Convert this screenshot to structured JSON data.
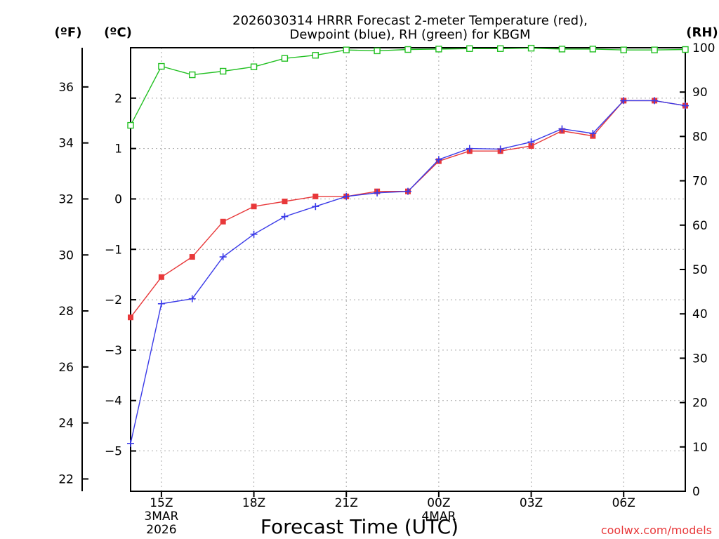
{
  "chart_data": {
    "type": "line",
    "title_line1": "2026030314 HRRR Forecast 2-meter Temperature (red),",
    "title_line2": "Dewpoint (blue), RH (green) for KBGM",
    "xlabel": "Forecast Time (UTC)",
    "credit": "coolwx.com/models",
    "units": {
      "fahrenheit": "(ºF)",
      "celsius": "(ºC)",
      "rh": "(RH)"
    },
    "x_hours": [
      14,
      15,
      16,
      17,
      18,
      19,
      20,
      21,
      22,
      23,
      24,
      25,
      26,
      27,
      28,
      29,
      30,
      31,
      32
    ],
    "x_ticks": [
      {
        "hour": 15,
        "label": "15Z",
        "sub1": "3MAR",
        "sub2": "2026"
      },
      {
        "hour": 18,
        "label": "18Z",
        "sub1": "",
        "sub2": ""
      },
      {
        "hour": 21,
        "label": "21Z",
        "sub1": "",
        "sub2": ""
      },
      {
        "hour": 24,
        "label": "00Z",
        "sub1": "4MAR",
        "sub2": ""
      },
      {
        "hour": 27,
        "label": "03Z",
        "sub1": "",
        "sub2": ""
      },
      {
        "hour": 30,
        "label": "06Z",
        "sub1": "",
        "sub2": ""
      }
    ],
    "celsius_axis": {
      "ylim": [
        -5.8,
        3.0
      ],
      "ticks": [
        "-5",
        "-4",
        "-3",
        "-2",
        "-1",
        "0",
        "1",
        "2"
      ]
    },
    "fahrenheit_axis": {
      "ylim": [
        21.56,
        37.4
      ],
      "ticks": [
        "22",
        "24",
        "26",
        "28",
        "30",
        "32",
        "34",
        "36"
      ]
    },
    "rh_axis": {
      "ylim": [
        0,
        100
      ],
      "ticks": [
        "0",
        "10",
        "20",
        "30",
        "40",
        "50",
        "60",
        "70",
        "80",
        "90",
        "100"
      ]
    },
    "series": [
      {
        "name": "Temperature",
        "units": "C",
        "color": "#e8383a",
        "marker": "filled-square",
        "values": [
          -2.35,
          -1.55,
          -1.15,
          -0.45,
          -0.15,
          -0.05,
          0.05,
          0.05,
          0.15,
          0.15,
          0.75,
          0.95,
          0.95,
          1.05,
          1.35,
          1.25,
          1.95,
          1.95,
          1.85
        ]
      },
      {
        "name": "Dewpoint",
        "units": "C",
        "color": "#3a3ae8",
        "marker": "plus",
        "values": [
          -4.85,
          -2.08,
          -1.98,
          -1.15,
          -0.7,
          -0.35,
          -0.15,
          0.05,
          0.12,
          0.15,
          0.78,
          1.0,
          0.99,
          1.13,
          1.39,
          1.3,
          1.95,
          1.95,
          1.85
        ]
      },
      {
        "name": "RH",
        "units": "%",
        "color": "#22c022",
        "marker": "open-square",
        "values": [
          82.5,
          95.8,
          93.9,
          94.7,
          95.7,
          97.6,
          98.3,
          99.5,
          99.3,
          99.6,
          99.7,
          99.8,
          99.8,
          99.9,
          99.7,
          99.7,
          99.5,
          99.5,
          99.6
        ]
      }
    ]
  }
}
